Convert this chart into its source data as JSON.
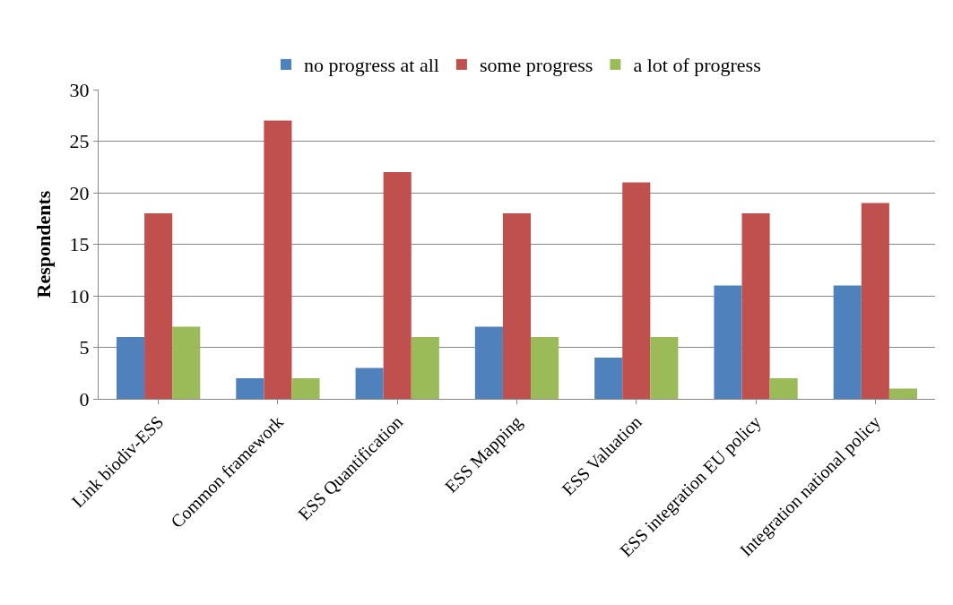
{
  "chart_data": {
    "type": "bar",
    "ylabel": "Respondents",
    "categories": [
      "Link biodiv-ESS",
      "Common framework",
      "ESS Quantification",
      "ESS Mapping",
      "ESS Valuation",
      "ESS integration EU policy",
      "Integration national policy"
    ],
    "series": [
      {
        "name": "no progress at all",
        "color": "#4f81bd",
        "values": [
          6,
          2,
          3,
          7,
          4,
          11,
          11
        ]
      },
      {
        "name": "some progress",
        "color": "#c0504d",
        "values": [
          18,
          27,
          22,
          18,
          21,
          18,
          19
        ]
      },
      {
        "name": "a lot of progress",
        "color": "#9bbb59",
        "values": [
          7,
          2,
          6,
          6,
          6,
          2,
          1
        ]
      }
    ],
    "ylim": [
      0,
      30
    ],
    "yticks": [
      0,
      5,
      10,
      15,
      20,
      25,
      30
    ],
    "grid": "y",
    "legend": "top"
  }
}
